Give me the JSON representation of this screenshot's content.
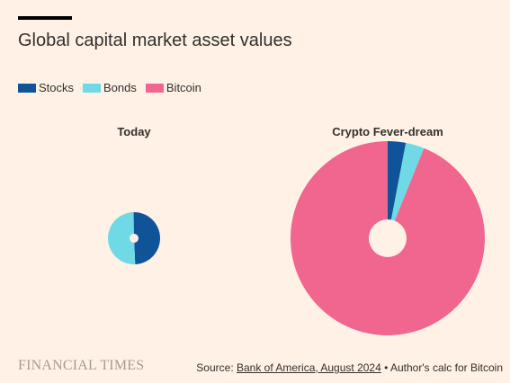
{
  "title": "Global capital market asset values",
  "legend": [
    {
      "label": "Stocks",
      "color": "#0f5499"
    },
    {
      "label": "Bonds",
      "color": "#6fdae6"
    },
    {
      "label": "Bitcoin",
      "color": "#f0668f"
    }
  ],
  "chart_data": [
    {
      "type": "pie",
      "subtype": "donut",
      "title": "Today",
      "categories": [
        "Stocks",
        "Bonds",
        "Bitcoin"
      ],
      "values": [
        49.3,
        50.0,
        0.7
      ],
      "colors": [
        "#0f5499",
        "#6fdae6",
        "#f0668f"
      ]
    },
    {
      "type": "pie",
      "subtype": "donut",
      "title": "Crypto Fever-dream",
      "categories": [
        "Stocks",
        "Bonds",
        "Bitcoin"
      ],
      "values": [
        3.0,
        3.1,
        93.9
      ],
      "colors": [
        "#0f5499",
        "#6fdae6",
        "#f0668f"
      ]
    }
  ],
  "footer": {
    "logo": "FINANCIAL TIMES",
    "source_prefix": "Source: ",
    "source_link": "Bank of America, August 2024",
    "source_suffix": " • Author's calc for Bitcoin"
  }
}
